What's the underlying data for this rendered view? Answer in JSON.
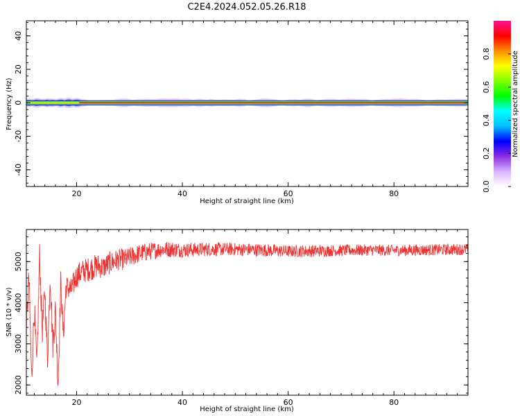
{
  "figure": {
    "title": "C2E4.2024.052.05.26.R18"
  },
  "chart_data": [
    {
      "type": "heatmap",
      "xlabel": "Height of straight line (km)",
      "ylabel": "Frequency (Hz)",
      "xlim": [
        10.5,
        94
      ],
      "ylim": [
        -50,
        49
      ],
      "xticks": [
        20,
        40,
        60,
        80
      ],
      "yticks": [
        -40,
        -20,
        0,
        20,
        40
      ],
      "colorbar": {
        "label": "Normalized spectral amplitude",
        "range": [
          0,
          1
        ],
        "ticks": [
          0.0,
          0.2,
          0.4,
          0.6,
          0.8
        ],
        "tick_labels": [
          "0.0",
          "0.2",
          "0.4",
          "0.6",
          "0.8"
        ],
        "colormap": [
          "#ffffff",
          "#d9b3ff",
          "#8a2be2",
          "#0000ff",
          "#00bfff",
          "#00ffff",
          "#00ff00",
          "#7fff00",
          "#ffff00",
          "#ff8c00",
          "#ff0000",
          "#ff1493"
        ]
      },
      "band": {
        "frequency_hz": 0,
        "core_amplitude": 0.95,
        "halo_amplitude": 0.3
      },
      "low_height_blobs": [
        {
          "x": 11.0,
          "amplitude": 0.45
        },
        {
          "x": 12.5,
          "amplitude": 0.55
        },
        {
          "x": 13.5,
          "amplitude": 0.4
        },
        {
          "x": 14.5,
          "amplitude": 0.5
        },
        {
          "x": 15.5,
          "amplitude": 0.45
        },
        {
          "x": 17.0,
          "amplitude": 0.55
        },
        {
          "x": 18.5,
          "amplitude": 0.6
        },
        {
          "x": 20.0,
          "amplitude": 0.55
        }
      ],
      "colors": {
        "line": "#ff0000",
        "halo": "#a020f0",
        "faint_halo": "#e2c6ff"
      }
    },
    {
      "type": "line",
      "xlabel": "Height of straight line (km)",
      "ylabel": "SNR (10 * v/v)",
      "xlim": [
        10.5,
        94
      ],
      "ylim": [
        1750,
        5780
      ],
      "xticks": [
        20,
        40,
        60,
        80
      ],
      "yticks": [
        2000,
        3000,
        4000,
        5000
      ],
      "series": [
        {
          "color": "#ee3333",
          "x": [
            10.5,
            11,
            11.5,
            12,
            12.5,
            13,
            13.5,
            14,
            14.5,
            15,
            15.5,
            16,
            16.5,
            17,
            17.5,
            18,
            19,
            20,
            21,
            22,
            23,
            24,
            25,
            26,
            27,
            28,
            29,
            30,
            32,
            34,
            36,
            38,
            40,
            45,
            50,
            55,
            60,
            65,
            70,
            75,
            80,
            85,
            90,
            94
          ],
          "values": [
            3400,
            4600,
            2100,
            3900,
            2300,
            5200,
            3300,
            4300,
            2600,
            4700,
            3000,
            3800,
            2000,
            4500,
            3200,
            4400,
            4300,
            4650,
            4750,
            4800,
            4850,
            4900,
            4850,
            4950,
            5000,
            5050,
            5050,
            5100,
            5200,
            5250,
            5300,
            5300,
            5280,
            5300,
            5300,
            5280,
            5250,
            5260,
            5270,
            5280,
            5270,
            5280,
            5290,
            5300
          ],
          "noise_amplitude": [
            300,
            400,
            400,
            400,
            400,
            300,
            400,
            300,
            400,
            300,
            400,
            400,
            400,
            300,
            300,
            300,
            300,
            300,
            300,
            300,
            300,
            300,
            280,
            280,
            280,
            260,
            260,
            250,
            230,
            220,
            200,
            200,
            180,
            170,
            160,
            160,
            150,
            150,
            140,
            140,
            140,
            140,
            140,
            140
          ]
        }
      ]
    }
  ]
}
